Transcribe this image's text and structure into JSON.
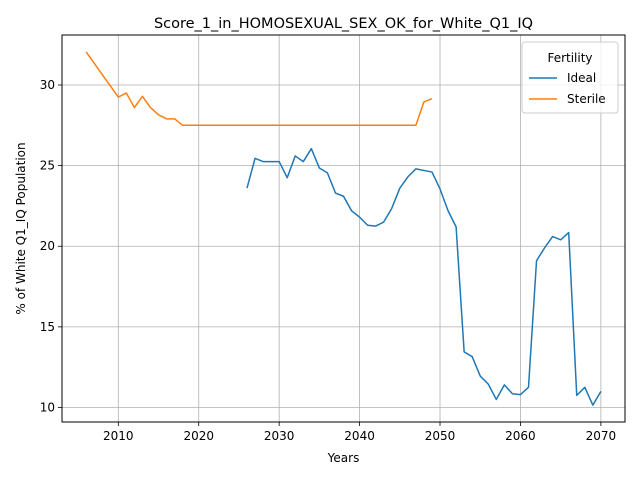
{
  "chart_data": {
    "type": "line",
    "title": "Score_1_in_HOMOSEXUAL_SEX_OK_for_White_Q1_IQ",
    "xlabel": "Years",
    "ylabel": "% of White Q1_IQ Population",
    "xlim": [
      2003,
      2073
    ],
    "ylim": [
      9.1,
      33.1
    ],
    "xticks": [
      2010,
      2020,
      2030,
      2040,
      2050,
      2060,
      2070
    ],
    "yticks": [
      10,
      15,
      20,
      25,
      30
    ],
    "grid": true,
    "legend": {
      "title": "Fertility",
      "placement": "top-right"
    },
    "series": [
      {
        "name": "Ideal",
        "color": "#1f77b4",
        "x": [
          2026,
          2027,
          2028,
          2029,
          2030,
          2031,
          2032,
          2033,
          2034,
          2035,
          2036,
          2037,
          2038,
          2039,
          2040,
          2041,
          2042,
          2043,
          2044,
          2045,
          2046,
          2047,
          2048,
          2049,
          2050,
          2051,
          2052,
          2053,
          2054,
          2055,
          2056,
          2057,
          2058,
          2059,
          2060,
          2061,
          2062,
          2063,
          2064,
          2065,
          2066,
          2067,
          2068,
          2069,
          2070
        ],
        "y": [
          23.6,
          25.45,
          25.25,
          25.25,
          25.25,
          24.25,
          25.6,
          25.25,
          26.05,
          24.85,
          24.55,
          23.3,
          23.1,
          22.2,
          21.8,
          21.3,
          21.25,
          21.5,
          22.35,
          23.6,
          24.3,
          24.8,
          24.7,
          24.6,
          23.55,
          22.2,
          21.2,
          13.45,
          13.15,
          11.95,
          11.45,
          10.5,
          11.4,
          10.85,
          10.8,
          11.25,
          19.1,
          19.9,
          20.6,
          20.4,
          20.85,
          10.75,
          11.25,
          10.15,
          11.0
        ]
      },
      {
        "name": "Sterile",
        "color": "#ff7f0e",
        "x": [
          2006,
          2007,
          2008,
          2009,
          2010,
          2011,
          2012,
          2013,
          2014,
          2015,
          2016,
          2017,
          2018,
          2019,
          2020,
          2021,
          2022,
          2023,
          2024,
          2025,
          2026,
          2027,
          2028,
          2029,
          2030,
          2031,
          2032,
          2033,
          2034,
          2035,
          2036,
          2037,
          2038,
          2039,
          2040,
          2041,
          2042,
          2043,
          2044,
          2045,
          2046,
          2047,
          2048,
          2049
        ],
        "y": [
          32.05,
          31.35,
          30.65,
          29.95,
          29.25,
          29.5,
          28.6,
          29.3,
          28.6,
          28.15,
          27.9,
          27.9,
          27.5,
          27.5,
          27.5,
          27.5,
          27.5,
          27.5,
          27.5,
          27.5,
          27.5,
          27.5,
          27.5,
          27.5,
          27.5,
          27.5,
          27.5,
          27.5,
          27.5,
          27.5,
          27.5,
          27.5,
          27.5,
          27.5,
          27.5,
          27.5,
          27.5,
          27.5,
          27.5,
          27.5,
          27.5,
          27.5,
          28.95,
          29.15
        ]
      }
    ]
  }
}
